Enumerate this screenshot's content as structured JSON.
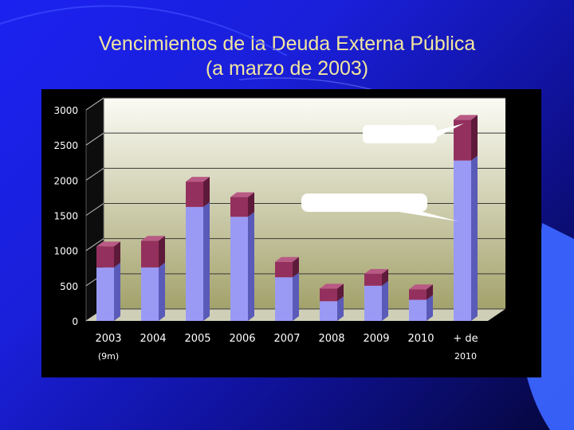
{
  "slide": {
    "title_line1": "Vencimientos de la Deuda Externa Pública",
    "title_line2": "(a marzo de 2003)"
  },
  "colors": {
    "bar_lower": "#9a9af5",
    "bar_upper": "#94305e",
    "plot_bg_top": "#fbfbf5",
    "plot_bg_bottom": "#a3a26b",
    "axis_text": "#ffffff",
    "title_text": "#f2e6a0"
  },
  "chart_data": {
    "type": "bar",
    "stacked": true,
    "categories": [
      "2003\n(9m)",
      "2004",
      "2005",
      "2006",
      "2007",
      "2008",
      "2009",
      "2010",
      "+ de\n2010"
    ],
    "category_lines": [
      [
        "2003",
        "(9m)"
      ],
      [
        "2004"
      ],
      [
        "2005"
      ],
      [
        "2006"
      ],
      [
        "2007"
      ],
      [
        "2008"
      ],
      [
        "2009"
      ],
      [
        "2010"
      ],
      [
        "+ de",
        "2010"
      ]
    ],
    "series": [
      {
        "values": [
          760,
          760,
          1620,
          1480,
          620,
          280,
          500,
          300,
          2280
        ]
      },
      {
        "values": [
          300,
          380,
          360,
          280,
          220,
          180,
          170,
          150,
          580
        ]
      }
    ],
    "ylim": [
      0,
      3000
    ],
    "yticks": [
      "0",
      "500",
      "1000",
      "1500",
      "2000",
      "2500",
      "3000"
    ],
    "grid": true,
    "style": "3d",
    "callouts": [
      "",
      ""
    ]
  }
}
